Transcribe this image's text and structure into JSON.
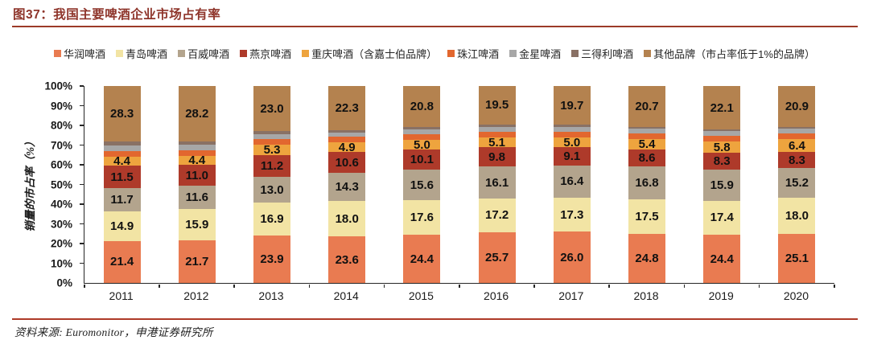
{
  "title": "图37：我国主要啤酒企业市场占有率",
  "source": "资料来源: Euromonitor，申港证券研究所",
  "accent_colors": {
    "title_text": "#8E342A",
    "title_rule": "#9C3A28",
    "footer_rule": "#AE3A28",
    "axis": "#262626",
    "label_text": "#111111"
  },
  "chart_data": {
    "type": "bar",
    "stacked": true,
    "title": "我国主要啤酒企业市场占有率",
    "ylabel": "销量的市占率（%）",
    "xlabel": "",
    "ylim": [
      0,
      100
    ],
    "y_ticks": [
      "0%",
      "10%",
      "20%",
      "30%",
      "40%",
      "50%",
      "60%",
      "70%",
      "80%",
      "90%",
      "100%"
    ],
    "grid": false,
    "legend_position": "top",
    "categories": [
      "2011",
      "2012",
      "2013",
      "2014",
      "2015",
      "2016",
      "2017",
      "2018",
      "2019",
      "2020"
    ],
    "series": [
      {
        "name": "华润啤酒",
        "color": "#E97B51",
        "labels_shown": true,
        "values": [
          21.4,
          21.7,
          23.9,
          23.6,
          24.4,
          25.7,
          26.0,
          24.8,
          24.4,
          25.1
        ]
      },
      {
        "name": "青岛啤酒",
        "color": "#F2E4A4",
        "labels_shown": true,
        "values": [
          14.9,
          15.9,
          16.9,
          18.0,
          17.6,
          17.2,
          17.3,
          17.5,
          17.4,
          18.0
        ]
      },
      {
        "name": "百威啤酒",
        "color": "#B3A48D",
        "labels_shown": true,
        "values": [
          11.7,
          11.6,
          13.0,
          14.3,
          15.6,
          16.1,
          16.4,
          16.8,
          15.9,
          15.2
        ]
      },
      {
        "name": "燕京啤酒",
        "color": "#AE3A2A",
        "labels_shown": true,
        "values": [
          11.5,
          11.0,
          11.2,
          10.6,
          10.1,
          9.8,
          9.1,
          8.6,
          8.3,
          8.3
        ]
      },
      {
        "name": "重庆啤酒（含嘉士伯品牌）",
        "color": "#EEA43E",
        "labels_shown": true,
        "values": [
          4.4,
          4.4,
          5.3,
          4.9,
          5.0,
          5.1,
          5.0,
          5.4,
          5.8,
          6.4
        ]
      },
      {
        "name": "珠江啤酒",
        "color": "#E2672F",
        "labels_shown": false,
        "values": [
          3.0,
          2.9,
          2.9,
          2.8,
          2.9,
          3.0,
          3.0,
          2.9,
          2.8,
          2.8
        ]
      },
      {
        "name": "金星啤酒",
        "color": "#A7A7A7",
        "labels_shown": false,
        "values": [
          2.8,
          2.6,
          2.4,
          2.3,
          2.4,
          2.5,
          2.5,
          2.4,
          2.4,
          2.4
        ]
      },
      {
        "name": "三得利啤酒",
        "color": "#897165",
        "labels_shown": false,
        "values": [
          2.0,
          1.7,
          1.4,
          1.2,
          1.2,
          1.1,
          1.0,
          0.9,
          0.9,
          0.9
        ]
      },
      {
        "name": "其他品牌（市占率低于1%的品牌）",
        "color": "#B4824F",
        "labels_shown": true,
        "values": [
          28.3,
          28.2,
          23.0,
          22.3,
          20.8,
          19.5,
          19.7,
          20.7,
          22.1,
          20.9
        ]
      }
    ]
  }
}
